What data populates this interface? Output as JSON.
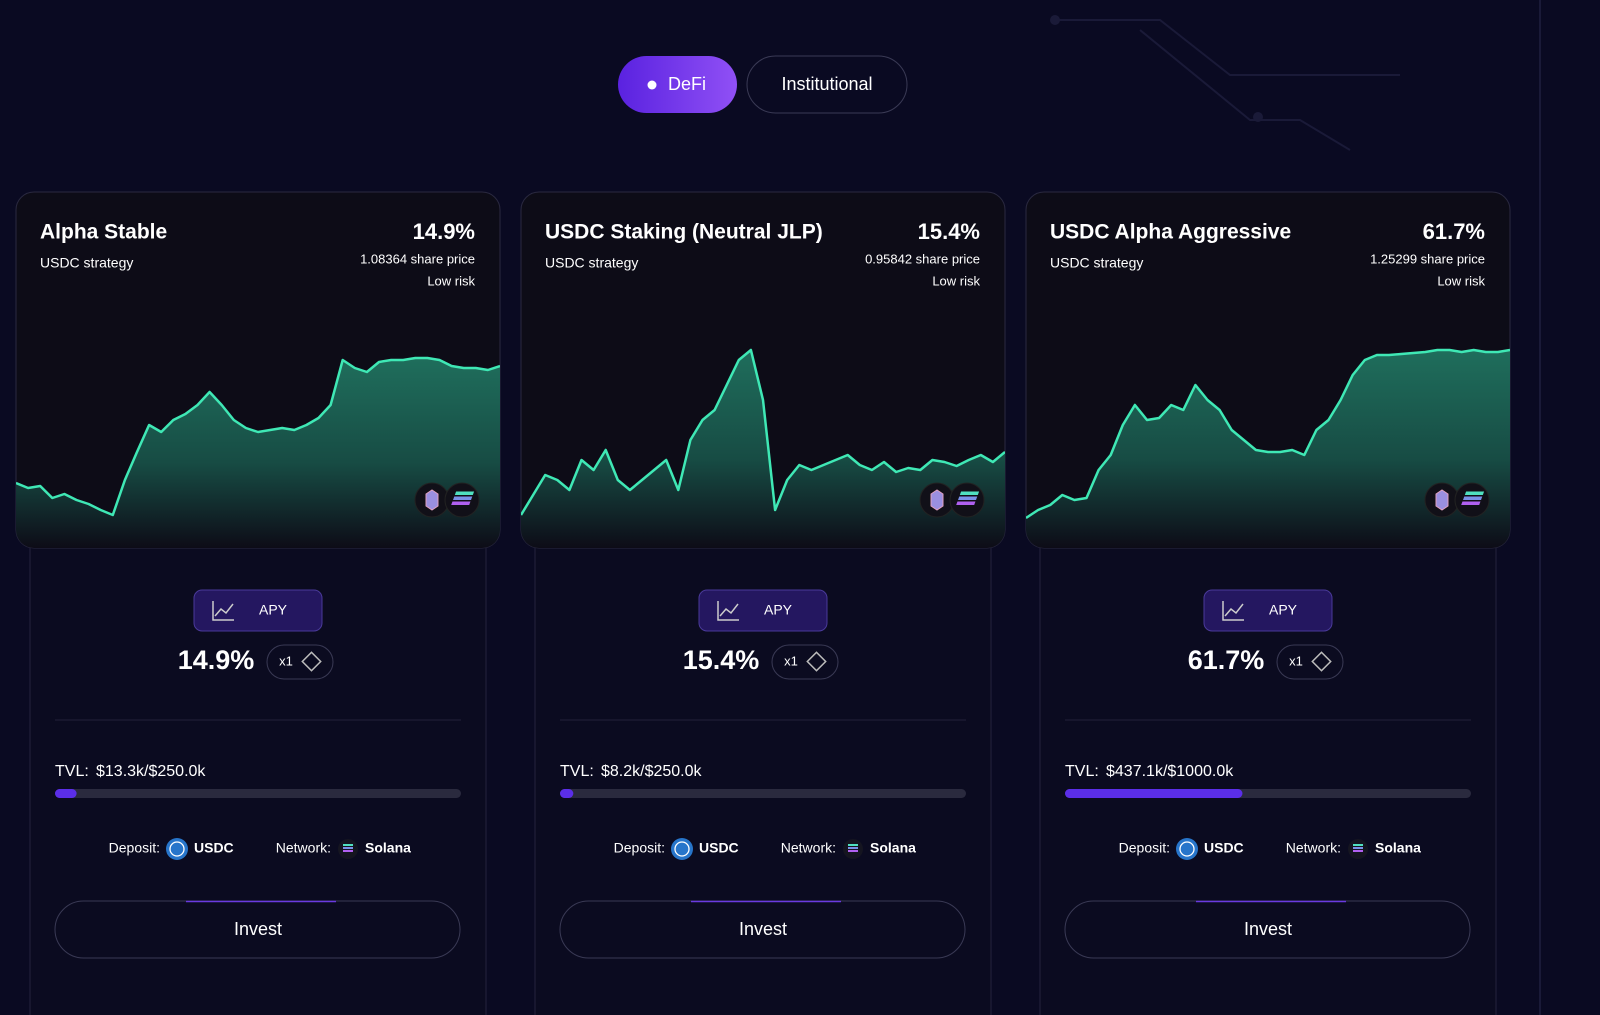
{
  "tabs": [
    {
      "label": "DeFi",
      "active": true
    },
    {
      "label": "Institutional",
      "active": false
    }
  ],
  "cards": [
    {
      "title": "Alpha Stable",
      "subtitle": "USDC strategy",
      "apy": "14.9%",
      "share_price": "1.08364 share price",
      "risk": "Low risk",
      "trend": {
        "ylim": [
          0,
          190
        ],
        "values": [
          39,
          34,
          36,
          24,
          28,
          22,
          18,
          12,
          7,
          42,
          70,
          97,
          90,
          102,
          108,
          117,
          130,
          117,
          102,
          94,
          90,
          92,
          94,
          92,
          97,
          104,
          117,
          162,
          154,
          150,
          160,
          162,
          162,
          164,
          164,
          162,
          156,
          154,
          154,
          152,
          156
        ]
      },
      "apy_button": "APY",
      "multiplier": "x1",
      "tvl_label": "TVL:",
      "tvl": "$13.3k/$250.0k",
      "tvl_current": 13300,
      "tvl_capacity": 250000,
      "deposit_label": "Deposit:",
      "deposit_asset": "USDC",
      "network_label": "Network:",
      "network": "Solana",
      "button": "Invest"
    },
    {
      "title": "USDC Staking (Neutral JLP)",
      "subtitle": "USDC strategy",
      "apy": "15.4%",
      "share_price": "0.95842 share price",
      "risk": "Low risk",
      "trend": {
        "ylim": [
          0,
          190
        ],
        "values": [
          7,
          27,
          47,
          42,
          32,
          62,
          52,
          72,
          42,
          32,
          42,
          52,
          62,
          32,
          82,
          102,
          112,
          137,
          162,
          172,
          122,
          12,
          42,
          57,
          52,
          57,
          62,
          67,
          57,
          52,
          60,
          50,
          54,
          52,
          62,
          60,
          56,
          62,
          67,
          60,
          70
        ]
      },
      "apy_button": "APY",
      "multiplier": "x1",
      "tvl_label": "TVL:",
      "tvl": "$8.2k/$250.0k",
      "tvl_current": 8200,
      "tvl_capacity": 250000,
      "deposit_label": "Deposit:",
      "deposit_asset": "USDC",
      "network_label": "Network:",
      "network": "Solana",
      "button": "Invest"
    },
    {
      "title": "USDC Alpha Aggressive",
      "subtitle": "USDC strategy",
      "apy": "61.7%",
      "share_price": "1.25299 share price",
      "risk": "Low risk",
      "trend": {
        "ylim": [
          0,
          190
        ],
        "values": [
          4,
          12,
          17,
          27,
          22,
          24,
          52,
          67,
          97,
          117,
          102,
          104,
          117,
          112,
          137,
          122,
          112,
          92,
          82,
          72,
          70,
          70,
          72,
          67,
          92,
          102,
          122,
          147,
          162,
          167,
          167,
          168,
          169,
          170,
          172,
          172,
          170,
          172,
          170,
          170,
          172
        ]
      },
      "apy_button": "APY",
      "multiplier": "x1",
      "tvl_label": "TVL:",
      "tvl": "$437.1k/$1000.0k",
      "tvl_current": 437100,
      "tvl_capacity": 1000000,
      "deposit_label": "Deposit:",
      "deposit_asset": "USDC",
      "network_label": "Network:",
      "network": "Solana",
      "button": "Invest"
    }
  ]
}
